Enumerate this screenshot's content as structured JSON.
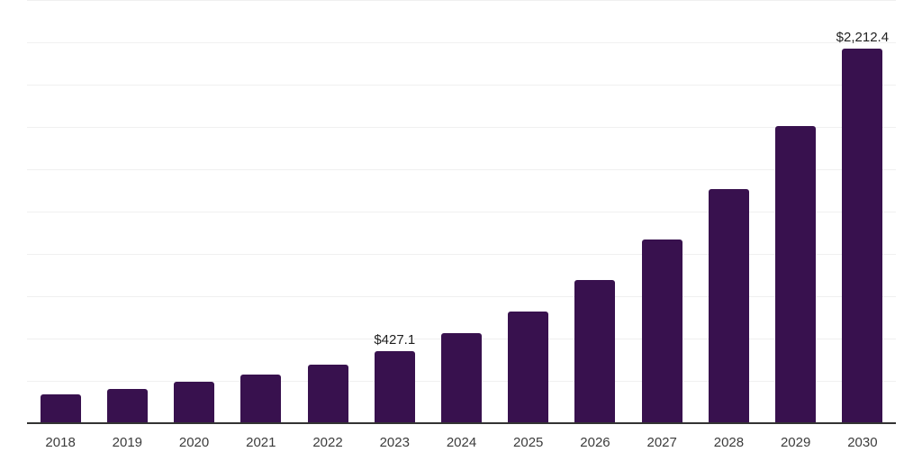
{
  "chart_data": {
    "type": "bar",
    "title": "",
    "xlabel": "",
    "ylabel": "",
    "categories": [
      "2018",
      "2019",
      "2020",
      "2021",
      "2022",
      "2023",
      "2024",
      "2025",
      "2026",
      "2027",
      "2028",
      "2029",
      "2030"
    ],
    "values": [
      168,
      204,
      243,
      286,
      346,
      427.1,
      532,
      660,
      846,
      1087,
      1383,
      1757,
      2212.4
    ],
    "data_labels": [
      "",
      "",
      "",
      "",
      "",
      "$427.1",
      "",
      "",
      "",
      "",
      "",
      "",
      "$2,212.4"
    ],
    "labeled_points": [
      {
        "category": "2023",
        "label": "$427.1",
        "value": 427.1
      },
      {
        "category": "2030",
        "label": "$2,212.4",
        "value": 2212.4
      }
    ],
    "ylim": [
      0,
      2500
    ],
    "gridline_step": 250,
    "grid": "horizontal",
    "legend": "none",
    "y_axis_labels_visible": false
  },
  "colors": {
    "bar": "#38114E",
    "gridline": "#F0F0F0",
    "axis_line": "#333333",
    "x_label_text": "#3C3C3C",
    "data_label_text": "#1F1F1F",
    "background": "#FFFFFF"
  }
}
